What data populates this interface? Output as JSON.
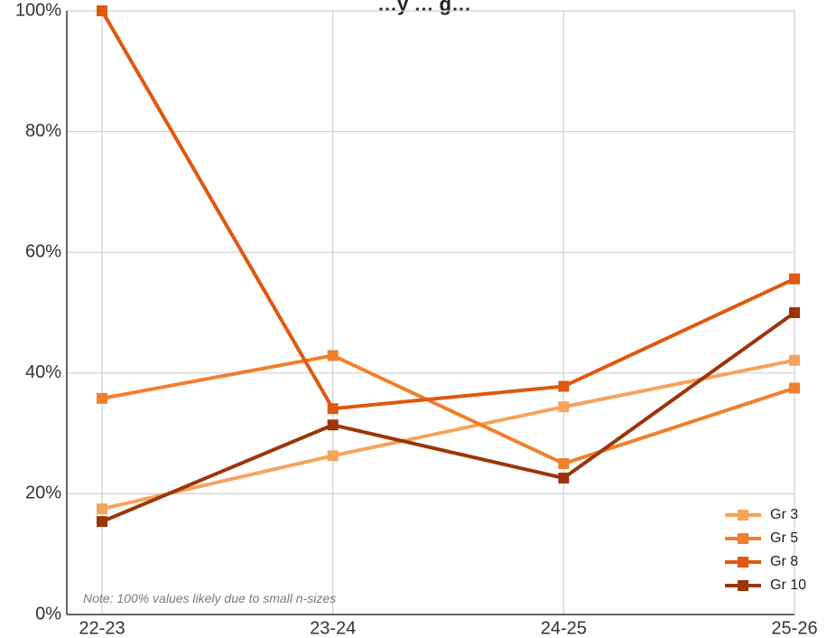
{
  "chart_data": {
    "type": "line",
    "title": "…y … g…",
    "xlabel": "",
    "ylabel": "",
    "categories": [
      "22-23",
      "23-24",
      "24-25",
      "25-26"
    ],
    "ylim": [
      0,
      100
    ],
    "y_ticks": [
      "0%",
      "20%",
      "40%",
      "60%",
      "80%",
      "100%"
    ],
    "grid": true,
    "legend_position": "bottom-right",
    "series": [
      {
        "name": "Gr 3",
        "color": "#f6a35c",
        "values": [
          17.5,
          26.3,
          34.4,
          42.1
        ]
      },
      {
        "name": "Gr 5",
        "color": "#f07f2c",
        "values": [
          35.8,
          42.9,
          25.0,
          37.5
        ]
      },
      {
        "name": "Gr 8",
        "color": "#e0580f",
        "values": [
          100,
          34.1,
          37.8,
          55.6
        ]
      },
      {
        "name": "Gr 10",
        "color": "#9c3509",
        "values": [
          15.4,
          31.4,
          22.6,
          50.0
        ]
      }
    ],
    "annotation": "Note: 100% values likely due to small n-sizes"
  }
}
